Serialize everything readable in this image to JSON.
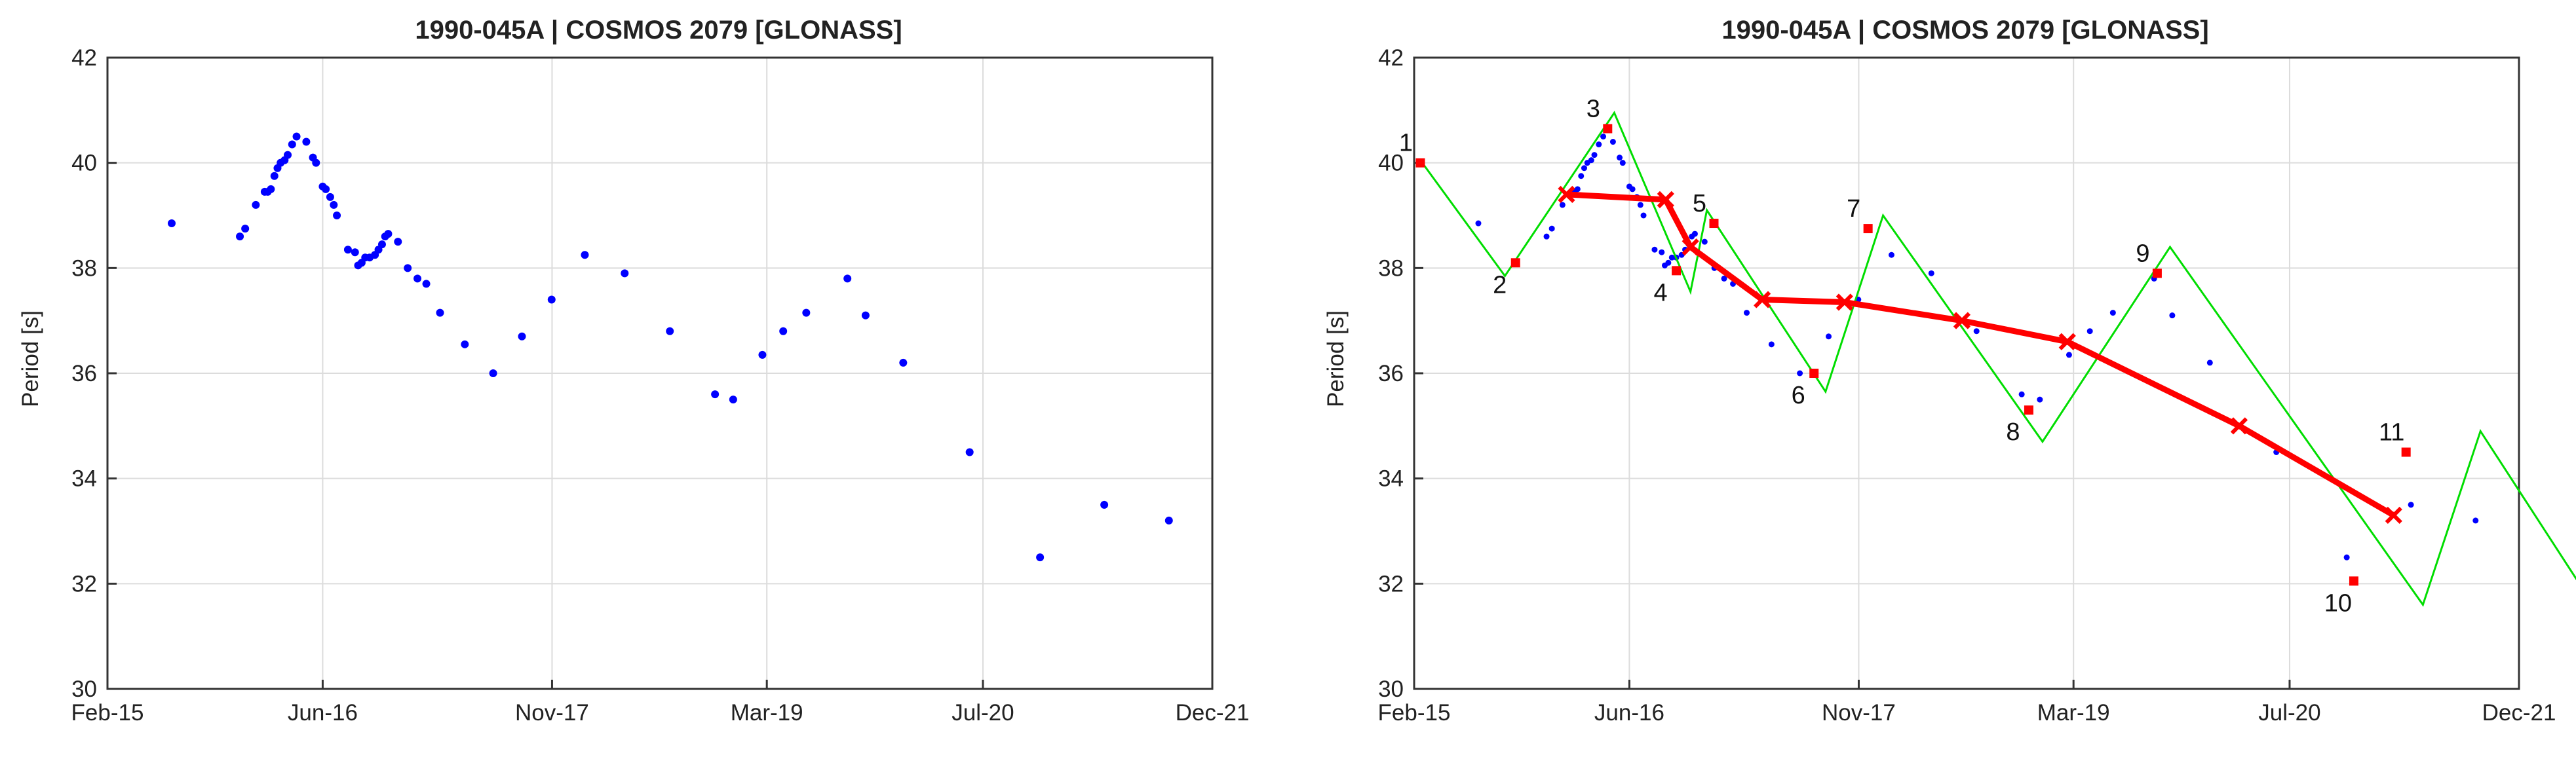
{
  "chart_data": [
    {
      "type": "scatter",
      "title": "1990-045A | COSMOS 2079 [GLONASS]",
      "xlabel": "",
      "ylabel": "Period [s]",
      "x_ticks": [
        "Feb-15",
        "Jun-16",
        "Nov-17",
        "Mar-19",
        "Jul-20",
        "Dec-21"
      ],
      "y_ticks": [
        "30",
        "32",
        "34",
        "36",
        "38",
        "40",
        "42"
      ],
      "xlim": [
        "2015-02-01",
        "2021-12-01"
      ],
      "ylim": [
        30,
        42
      ],
      "grid": true,
      "series": [
        {
          "color": "#0000ff",
          "points": [
            [
              "2015-06-26",
              38.85
            ],
            [
              "2015-11-27",
              38.6
            ],
            [
              "2015-12-09",
              38.75
            ],
            [
              "2016-01-02",
              39.2
            ],
            [
              "2016-01-22",
              39.45
            ],
            [
              "2016-01-29",
              39.45
            ],
            [
              "2016-02-05",
              39.5
            ],
            [
              "2016-02-13",
              39.75
            ],
            [
              "2016-02-20",
              39.9
            ],
            [
              "2016-02-27",
              40.0
            ],
            [
              "2016-03-07",
              40.05
            ],
            [
              "2016-03-14",
              40.15
            ],
            [
              "2016-03-24",
              40.35
            ],
            [
              "2016-04-03",
              40.5
            ],
            [
              "2016-04-25",
              40.4
            ],
            [
              "2016-05-10",
              40.1
            ],
            [
              "2016-05-17",
              40.0
            ],
            [
              "2016-06-01",
              39.55
            ],
            [
              "2016-06-08",
              39.5
            ],
            [
              "2016-06-18",
              39.35
            ],
            [
              "2016-06-26",
              39.2
            ],
            [
              "2016-07-03",
              39.0
            ],
            [
              "2016-07-28",
              38.35
            ],
            [
              "2016-08-13",
              38.3
            ],
            [
              "2016-08-20",
              38.05
            ],
            [
              "2016-08-28",
              38.1
            ],
            [
              "2016-09-05",
              38.2
            ],
            [
              "2016-09-15",
              38.2
            ],
            [
              "2016-09-27",
              38.25
            ],
            [
              "2016-10-05",
              38.35
            ],
            [
              "2016-10-13",
              38.45
            ],
            [
              "2016-10-20",
              38.6
            ],
            [
              "2016-10-27",
              38.65
            ],
            [
              "2016-11-18",
              38.5
            ],
            [
              "2016-12-10",
              38.0
            ],
            [
              "2017-01-01",
              37.8
            ],
            [
              "2017-01-21",
              37.7
            ],
            [
              "2017-02-21",
              37.15
            ],
            [
              "2017-04-18",
              36.55
            ],
            [
              "2017-06-21",
              36.0
            ],
            [
              "2017-08-25",
              36.7
            ],
            [
              "2017-10-31",
              37.4
            ],
            [
              "2018-01-14",
              38.25
            ],
            [
              "2018-04-14",
              37.9
            ],
            [
              "2018-07-25",
              36.8
            ],
            [
              "2018-11-04",
              35.6
            ],
            [
              "2018-12-15",
              35.5
            ],
            [
              "2019-02-19",
              36.35
            ],
            [
              "2019-04-07",
              36.8
            ],
            [
              "2019-05-29",
              37.15
            ],
            [
              "2019-08-30",
              37.8
            ],
            [
              "2019-10-10",
              37.1
            ],
            [
              "2020-01-03",
              36.2
            ],
            [
              "2020-06-01",
              34.5
            ],
            [
              "2020-11-07",
              32.5
            ],
            [
              "2021-04-01",
              33.5
            ],
            [
              "2021-08-25",
              33.2
            ]
          ]
        }
      ]
    },
    {
      "type": "line",
      "title": "1990-045A | COSMOS 2079 [GLONASS]",
      "xlabel": "",
      "ylabel": "Period [s]",
      "x_ticks": [
        "Feb-15",
        "Jun-16",
        "Nov-17",
        "Mar-19",
        "Jul-20",
        "Dec-21"
      ],
      "y_ticks": [
        "30",
        "32",
        "34",
        "36",
        "38",
        "40",
        "42"
      ],
      "xlim": [
        "2015-02-01",
        "2021-12-01"
      ],
      "ylim": [
        30,
        42
      ],
      "grid": true,
      "series": [
        {
          "role": "observations",
          "color": "#0000ff",
          "points": [
            [
              "2015-06-26",
              38.85
            ],
            [
              "2015-11-27",
              38.6
            ],
            [
              "2015-12-09",
              38.75
            ],
            [
              "2016-01-02",
              39.2
            ],
            [
              "2016-01-22",
              39.45
            ],
            [
              "2016-01-29",
              39.45
            ],
            [
              "2016-02-05",
              39.5
            ],
            [
              "2016-02-13",
              39.75
            ],
            [
              "2016-02-20",
              39.9
            ],
            [
              "2016-02-27",
              40.0
            ],
            [
              "2016-03-07",
              40.05
            ],
            [
              "2016-03-14",
              40.15
            ],
            [
              "2016-03-24",
              40.35
            ],
            [
              "2016-04-03",
              40.5
            ],
            [
              "2016-04-25",
              40.4
            ],
            [
              "2016-05-10",
              40.1
            ],
            [
              "2016-05-17",
              40.0
            ],
            [
              "2016-06-01",
              39.55
            ],
            [
              "2016-06-08",
              39.5
            ],
            [
              "2016-06-18",
              39.35
            ],
            [
              "2016-06-26",
              39.2
            ],
            [
              "2016-07-03",
              39.0
            ],
            [
              "2016-07-28",
              38.35
            ],
            [
              "2016-08-13",
              38.3
            ],
            [
              "2016-08-20",
              38.05
            ],
            [
              "2016-08-28",
              38.1
            ],
            [
              "2016-09-05",
              38.2
            ],
            [
              "2016-09-15",
              38.2
            ],
            [
              "2016-09-27",
              38.25
            ],
            [
              "2016-10-05",
              38.35
            ],
            [
              "2016-10-13",
              38.45
            ],
            [
              "2016-10-20",
              38.6
            ],
            [
              "2016-10-27",
              38.65
            ],
            [
              "2016-11-18",
              38.5
            ],
            [
              "2016-12-10",
              38.0
            ],
            [
              "2017-01-01",
              37.8
            ],
            [
              "2017-01-21",
              37.7
            ],
            [
              "2017-02-21",
              37.15
            ],
            [
              "2017-04-18",
              36.55
            ],
            [
              "2017-06-21",
              36.0
            ],
            [
              "2017-08-25",
              36.7
            ],
            [
              "2017-10-31",
              37.4
            ],
            [
              "2018-01-14",
              38.25
            ],
            [
              "2018-04-14",
              37.9
            ],
            [
              "2018-07-25",
              36.8
            ],
            [
              "2018-11-04",
              35.6
            ],
            [
              "2018-12-15",
              35.5
            ],
            [
              "2019-02-19",
              36.35
            ],
            [
              "2019-04-07",
              36.8
            ],
            [
              "2019-05-29",
              37.15
            ],
            [
              "2019-08-30",
              37.8
            ],
            [
              "2019-10-10",
              37.1
            ],
            [
              "2020-01-03",
              36.2
            ],
            [
              "2020-06-01",
              34.5
            ],
            [
              "2020-11-07",
              32.5
            ],
            [
              "2021-04-01",
              33.5
            ],
            [
              "2021-08-25",
              33.2
            ]
          ]
        },
        {
          "role": "fit-segments",
          "color": "#00dd00",
          "polyline": [
            [
              "2015-02-15",
              40.05
            ],
            [
              "2015-08-25",
              37.85
            ],
            [
              "2016-04-28",
              40.95
            ],
            [
              "2016-10-17",
              37.55
            ],
            [
              "2016-11-23",
              39.1
            ],
            [
              "2017-08-18",
              35.65
            ],
            [
              "2017-12-26",
              39.0
            ],
            [
              "2018-12-21",
              34.7
            ],
            [
              "2019-10-05",
              38.4
            ],
            [
              "2021-04-28",
              31.6
            ],
            [
              "2021-09-05",
              34.9
            ],
            [
              "2022-06-17",
              31.2
            ]
          ]
        },
        {
          "role": "turning-points",
          "color": "#ff0000",
          "labels": [
            "1",
            "2",
            "3",
            "4",
            "5",
            "6",
            "7",
            "8",
            "9",
            "10",
            "11"
          ],
          "points": [
            [
              "2015-02-15",
              40.0
            ],
            [
              "2015-09-18",
              38.1
            ],
            [
              "2016-04-13",
              40.65
            ],
            [
              "2016-09-15",
              37.95
            ],
            [
              "2016-12-09",
              38.85
            ],
            [
              "2017-07-23",
              36.0
            ],
            [
              "2017-11-22",
              38.75
            ],
            [
              "2018-11-20",
              35.3
            ],
            [
              "2019-09-06",
              37.9
            ],
            [
              "2020-11-23",
              32.05
            ],
            [
              "2021-03-21",
              34.5
            ]
          ]
        },
        {
          "role": "trend",
          "color": "#ff0000",
          "points": [
            [
              "2016-01-11",
              39.4
            ],
            [
              "2016-08-22",
              39.3
            ],
            [
              "2016-10-17",
              38.4
            ],
            [
              "2017-03-28",
              37.4
            ],
            [
              "2017-09-30",
              37.35
            ],
            [
              "2018-06-22",
              37.0
            ],
            [
              "2019-02-15",
              36.6
            ],
            [
              "2020-03-09",
              35.0
            ],
            [
              "2021-02-21",
              33.3
            ]
          ]
        }
      ]
    }
  ]
}
